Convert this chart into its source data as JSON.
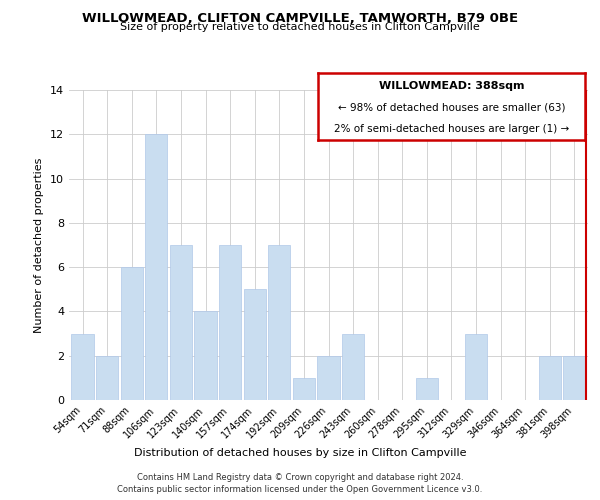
{
  "title": "WILLOWMEAD, CLIFTON CAMPVILLE, TAMWORTH, B79 0BE",
  "subtitle": "Size of property relative to detached houses in Clifton Campville",
  "xlabel": "Distribution of detached houses by size in Clifton Campville",
  "ylabel": "Number of detached properties",
  "bar_labels": [
    "54sqm",
    "71sqm",
    "88sqm",
    "106sqm",
    "123sqm",
    "140sqm",
    "157sqm",
    "174sqm",
    "192sqm",
    "209sqm",
    "226sqm",
    "243sqm",
    "260sqm",
    "278sqm",
    "295sqm",
    "312sqm",
    "329sqm",
    "346sqm",
    "364sqm",
    "381sqm",
    "398sqm"
  ],
  "bar_values": [
    3,
    2,
    6,
    12,
    7,
    4,
    7,
    5,
    7,
    1,
    2,
    3,
    0,
    0,
    1,
    0,
    3,
    0,
    0,
    2,
    2
  ],
  "bar_color": "#c9ddf0",
  "bar_edge_color": "#b0c8e8",
  "highlight_bar_index": 20,
  "highlight_line_color": "#cc0000",
  "ylim": [
    0,
    14
  ],
  "yticks": [
    0,
    2,
    4,
    6,
    8,
    10,
    12,
    14
  ],
  "legend_title": "WILLOWMEAD: 388sqm",
  "legend_line1": "← 98% of detached houses are smaller (63)",
  "legend_line2": "2% of semi-detached houses are larger (1) →",
  "legend_box_color": "#cc0000",
  "footer_line1": "Contains HM Land Registry data © Crown copyright and database right 2024.",
  "footer_line2": "Contains public sector information licensed under the Open Government Licence v3.0.",
  "bg_color": "#ffffff",
  "grid_color": "#cccccc"
}
